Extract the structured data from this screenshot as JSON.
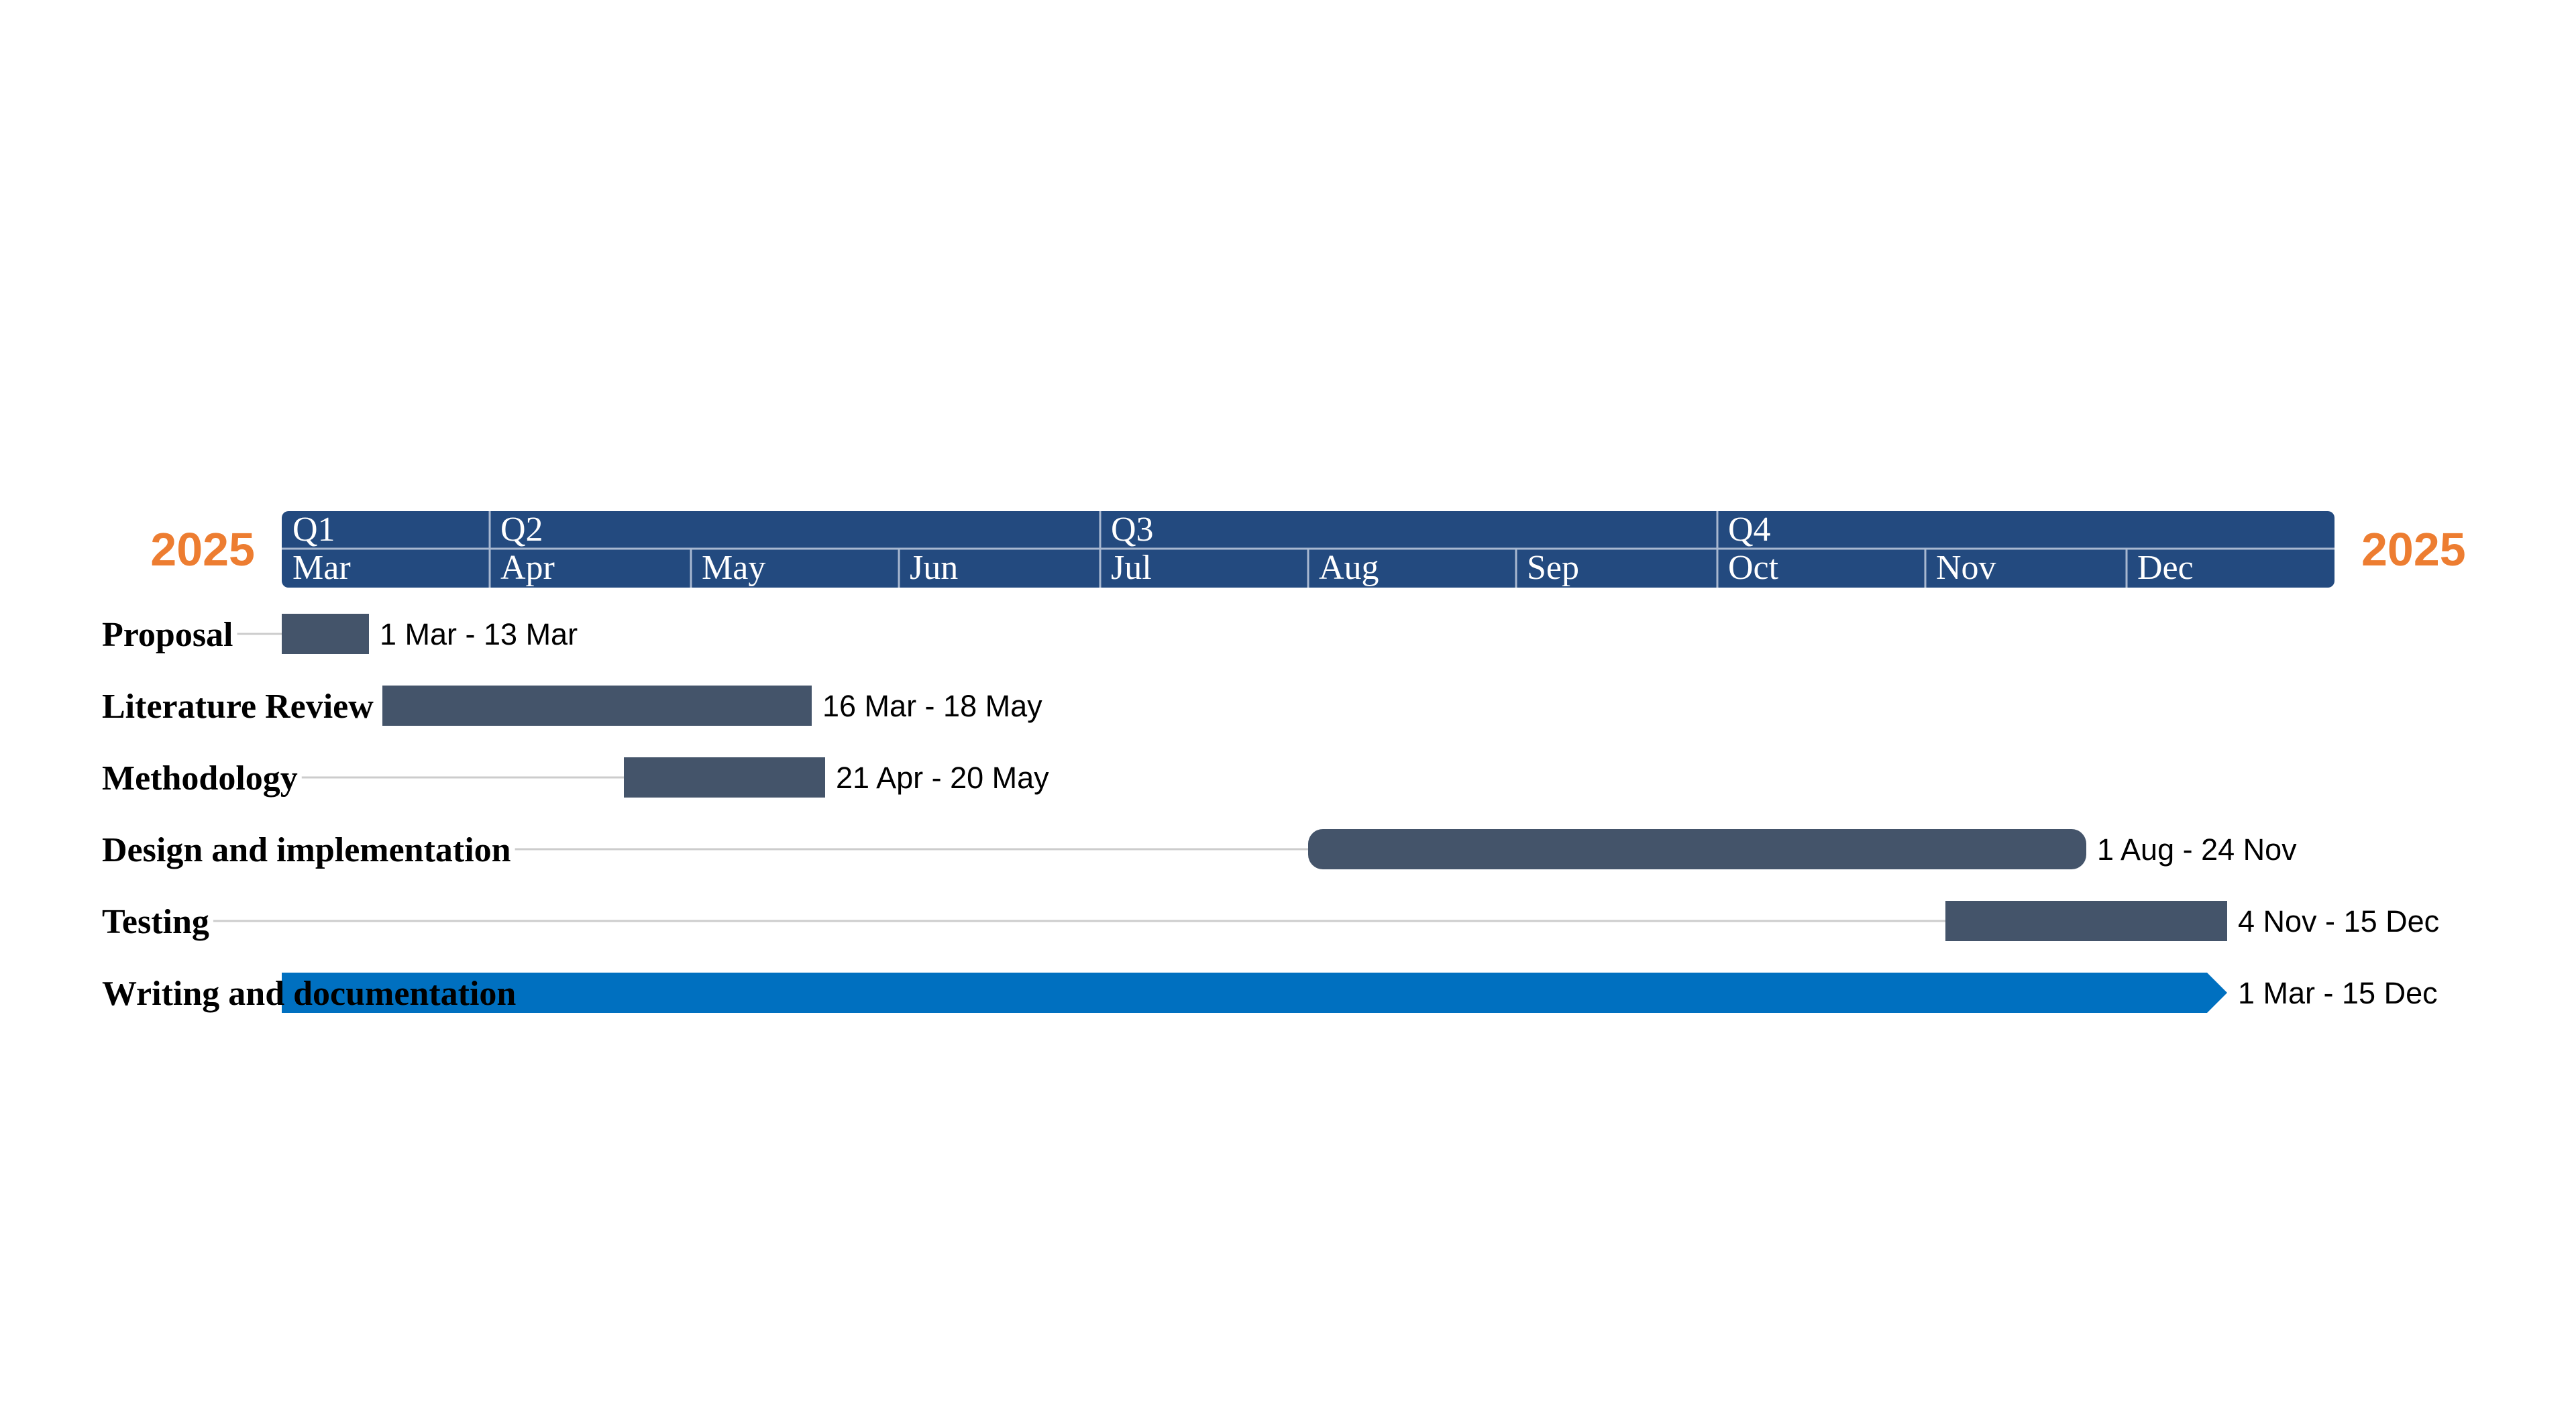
{
  "chart_data": {
    "type": "gantt",
    "year_left": "2025",
    "year_right": "2025",
    "quarters": [
      "Q1",
      "Q2",
      "Q3",
      "Q4"
    ],
    "months": [
      "Mar",
      "Apr",
      "May",
      "Jun",
      "Jul",
      "Aug",
      "Sep",
      "Oct",
      "Nov",
      "Dec"
    ],
    "tasks": [
      {
        "name": "Proposal",
        "start": "2025-03-01",
        "end": "2025-03-13",
        "label": "1 Mar - 13 Mar",
        "style": "bar"
      },
      {
        "name": "Literature Review",
        "start": "2025-03-16",
        "end": "2025-05-18",
        "label": "16 Mar - 18 May",
        "style": "bar"
      },
      {
        "name": "Methodology",
        "start": "2025-04-21",
        "end": "2025-05-20",
        "label": "21 Apr - 20 May",
        "style": "bar"
      },
      {
        "name": "Design and implementation",
        "start": "2025-08-01",
        "end": "2025-11-24",
        "label": "1 Aug - 24 Nov",
        "style": "rounded"
      },
      {
        "name": "Testing",
        "start": "2025-11-04",
        "end": "2025-12-15",
        "label": "4 Nov - 15 Dec",
        "style": "bar"
      },
      {
        "name": "Writing and documentation",
        "start": "2025-03-01",
        "end": "2025-12-15",
        "label": "1 Mar - 15 Dec",
        "style": "arrow"
      }
    ]
  },
  "colors": {
    "year": "#ED7D31",
    "header": "#234a7f",
    "header_divider": "#a8b8d0",
    "task_bar": "#44546a",
    "summary_bar": "#0070c0",
    "connector": "#cccccc"
  }
}
